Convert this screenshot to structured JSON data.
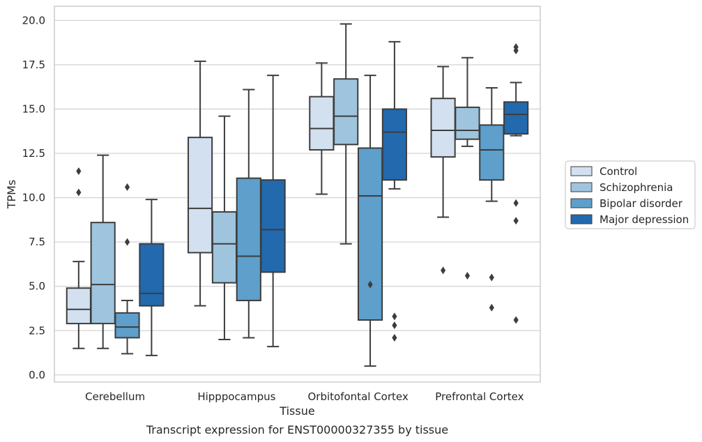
{
  "chart_data": {
    "type": "box",
    "title": "",
    "xlabel": "Tissue",
    "ylabel": "TPMs",
    "caption": "Transcript expression for ENST00000327355 by tissue",
    "ylim": [
      -0.4,
      20.8
    ],
    "yticks": [
      0.0,
      2.5,
      5.0,
      7.5,
      10.0,
      12.5,
      15.0,
      17.5,
      20.0
    ],
    "ytick_labels": [
      "0.0",
      "2.5",
      "5.0",
      "7.5",
      "10.0",
      "12.5",
      "15.0",
      "17.5",
      "20.0"
    ],
    "grid": "horizontal",
    "legend_position": "right",
    "categories": [
      "Cerebellum",
      "Hipppocampus",
      "Orbitofontal Cortex",
      "Prefrontal Cortex"
    ],
    "series": [
      {
        "name": "Control",
        "color": "#d2e0f0",
        "boxes": [
          {
            "whislo": 1.5,
            "q1": 2.9,
            "med": 3.7,
            "q3": 4.9,
            "whishi": 6.4,
            "fliers": [
              10.3,
              11.5
            ]
          },
          {
            "whislo": 3.9,
            "q1": 6.9,
            "med": 9.4,
            "q3": 13.4,
            "whishi": 17.7,
            "fliers": []
          },
          {
            "whislo": 10.2,
            "q1": 12.7,
            "med": 13.9,
            "q3": 15.7,
            "whishi": 17.6,
            "fliers": []
          },
          {
            "whislo": 8.9,
            "q1": 12.3,
            "med": 13.8,
            "q3": 15.6,
            "whishi": 17.4,
            "fliers": [
              5.9
            ]
          }
        ]
      },
      {
        "name": "Schizophrenia",
        "color": "#9ec4de",
        "boxes": [
          {
            "whislo": 1.5,
            "q1": 2.9,
            "med": 5.1,
            "q3": 8.6,
            "whishi": 12.4,
            "fliers": []
          },
          {
            "whislo": 2.0,
            "q1": 5.2,
            "med": 7.4,
            "q3": 9.2,
            "whishi": 14.6,
            "fliers": []
          },
          {
            "whislo": 7.4,
            "q1": 13.0,
            "med": 14.6,
            "q3": 16.7,
            "whishi": 19.8,
            "fliers": []
          },
          {
            "whislo": 12.9,
            "q1": 13.3,
            "med": 13.8,
            "q3": 15.1,
            "whishi": 17.9,
            "fliers": [
              5.6
            ]
          }
        ]
      },
      {
        "name": "Bipolar disorder",
        "color": "#5e9fcb",
        "boxes": [
          {
            "whislo": 1.2,
            "q1": 2.1,
            "med": 2.7,
            "q3": 3.5,
            "whishi": 4.2,
            "fliers": [
              7.5,
              10.6
            ]
          },
          {
            "whislo": 2.1,
            "q1": 4.2,
            "med": 6.7,
            "q3": 11.1,
            "whishi": 16.1,
            "fliers": []
          },
          {
            "whislo": 0.5,
            "q1": 3.1,
            "med": 10.1,
            "q3": 12.8,
            "whishi": 16.9,
            "fliers": [
              5.1
            ]
          },
          {
            "whislo": 9.8,
            "q1": 11.0,
            "med": 12.7,
            "q3": 14.1,
            "whishi": 16.2,
            "fliers": [
              3.8,
              5.5
            ]
          }
        ]
      },
      {
        "name": "Major depression",
        "color": "#2369ad",
        "boxes": [
          {
            "whislo": 1.1,
            "q1": 3.9,
            "med": 4.6,
            "q3": 7.4,
            "whishi": 9.9,
            "fliers": []
          },
          {
            "whislo": 1.6,
            "q1": 5.8,
            "med": 8.2,
            "q3": 11.0,
            "whishi": 16.9,
            "fliers": []
          },
          {
            "whislo": 10.5,
            "q1": 11.0,
            "med": 13.7,
            "q3": 15.0,
            "whishi": 18.8,
            "fliers": [
              2.1,
              2.8,
              3.3
            ]
          },
          {
            "whislo": 13.5,
            "q1": 13.6,
            "med": 14.7,
            "q3": 15.4,
            "whishi": 16.5,
            "fliers": [
              3.1,
              8.7,
              9.7,
              18.3,
              18.5
            ]
          }
        ]
      }
    ]
  }
}
